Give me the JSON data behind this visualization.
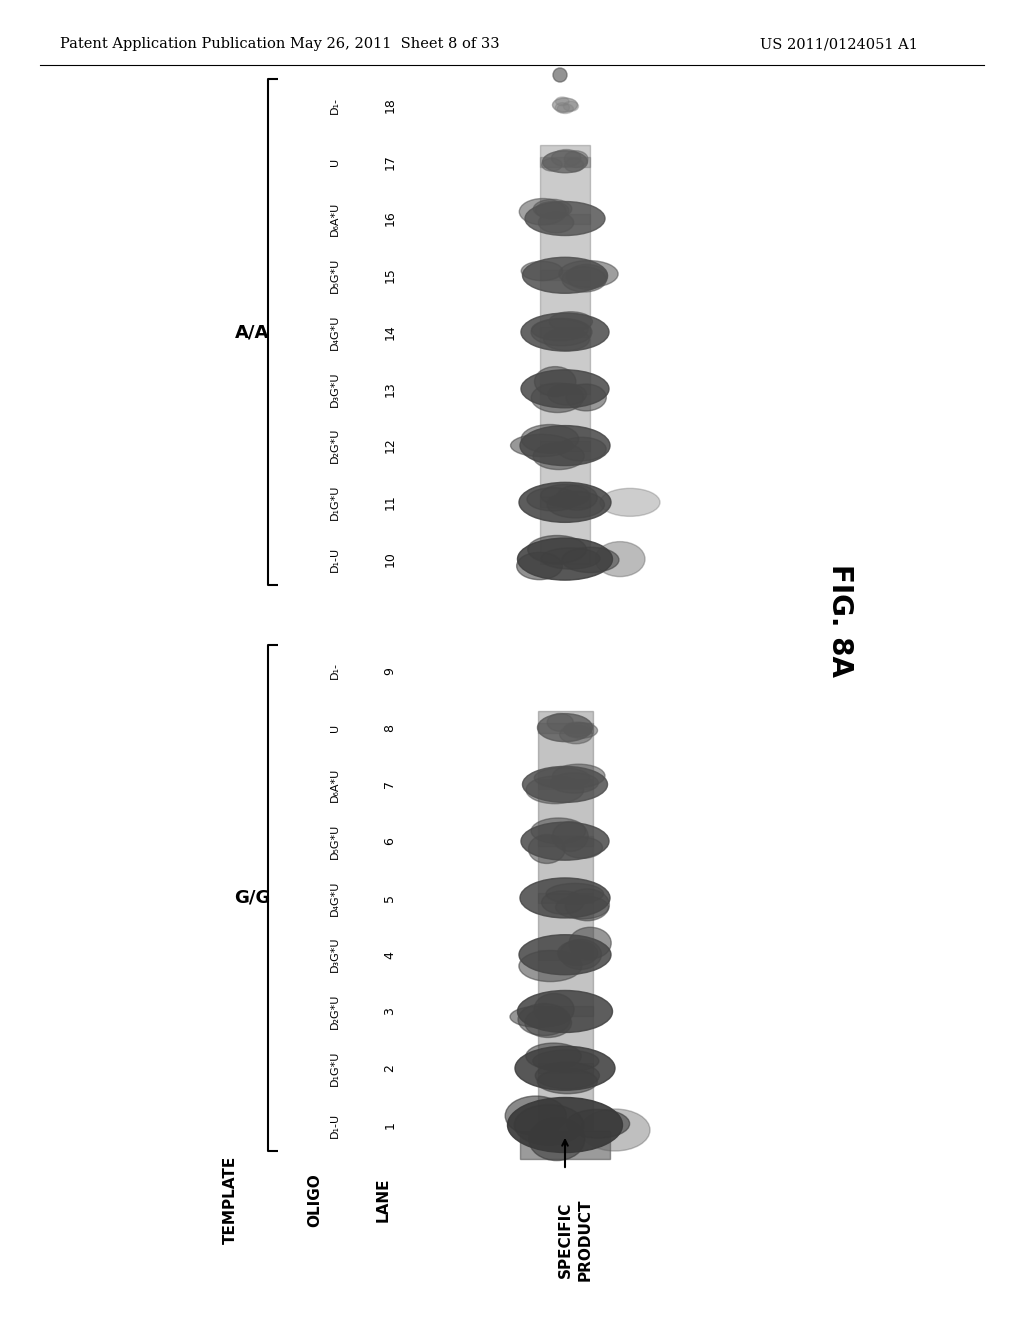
{
  "header_left": "Patent Application Publication",
  "header_middle": "May 26, 2011  Sheet 8 of 33",
  "header_right": "US 2011/0124051 A1",
  "fig_label": "FIG. 8A",
  "template_label": "TEMPLATE",
  "oligo_label": "OLIGO",
  "lane_label": "LANE",
  "specific_product_label1": "SPECIFIC",
  "specific_product_label2": "PRODUCT",
  "group_gg": "G/G",
  "group_aa": "A/A",
  "lanes_gg": [
    {
      "lane": 1,
      "oligo": "D₁-U"
    },
    {
      "lane": 2,
      "oligo": "D₁G*U"
    },
    {
      "lane": 3,
      "oligo": "D₂G*U"
    },
    {
      "lane": 4,
      "oligo": "D₃G*U"
    },
    {
      "lane": 5,
      "oligo": "D₄G*U"
    },
    {
      "lane": 6,
      "oligo": "D₅G*U"
    },
    {
      "lane": 7,
      "oligo": "D₆A*U"
    },
    {
      "lane": 8,
      "oligo": "U"
    },
    {
      "lane": 9,
      "oligo": "D₁-"
    }
  ],
  "lanes_aa": [
    {
      "lane": 10,
      "oligo": "D₁-U"
    },
    {
      "lane": 11,
      "oligo": "D₁G*U"
    },
    {
      "lane": 12,
      "oligo": "D₂G*U"
    },
    {
      "lane": 13,
      "oligo": "D₃G*U"
    },
    {
      "lane": 14,
      "oligo": "D₄G*U"
    },
    {
      "lane": 15,
      "oligo": "D₅G*U"
    },
    {
      "lane": 16,
      "oligo": "D₆A*U"
    },
    {
      "lane": 17,
      "oligo": "U"
    },
    {
      "lane": 18,
      "oligo": "D₁-"
    }
  ],
  "bg_color": "#ffffff",
  "text_color": "#000000"
}
